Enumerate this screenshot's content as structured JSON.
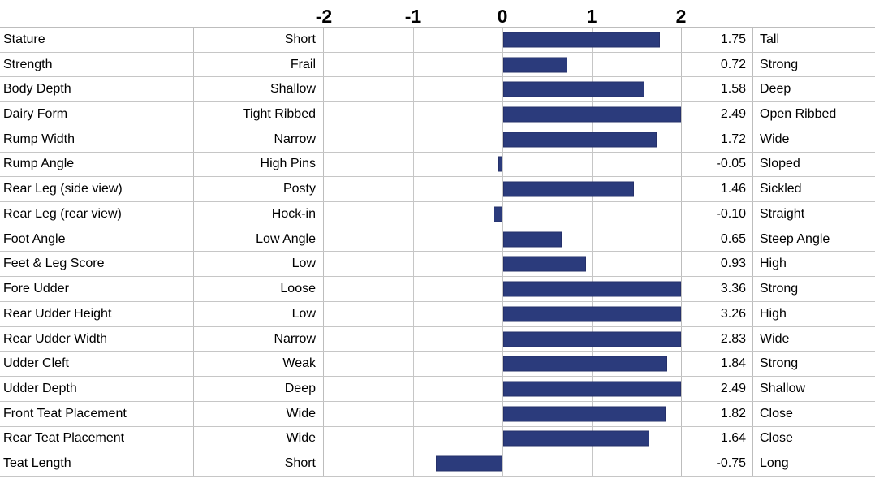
{
  "chart_data": {
    "type": "bar",
    "orientation": "horizontal",
    "title": "",
    "axis_ticks": [
      "-2",
      "-1",
      "0",
      "1",
      "2"
    ],
    "xlim": [
      -2,
      2
    ],
    "bar_color": "#2b3b7c",
    "gridline_color": "#c6c6c6",
    "rows": [
      {
        "trait": "Stature",
        "low": "Short",
        "value": 1.75,
        "high": "Tall"
      },
      {
        "trait": "Strength",
        "low": "Frail",
        "value": 0.72,
        "high": "Strong"
      },
      {
        "trait": "Body Depth",
        "low": "Shallow",
        "value": 1.58,
        "high": "Deep"
      },
      {
        "trait": "Dairy Form",
        "low": "Tight Ribbed",
        "value": 2.49,
        "high": "Open Ribbed"
      },
      {
        "trait": "Rump Width",
        "low": "Narrow",
        "value": 1.72,
        "high": "Wide"
      },
      {
        "trait": "Rump Angle",
        "low": "High Pins",
        "value": -0.05,
        "high": "Sloped"
      },
      {
        "trait": "Rear Leg (side view)",
        "low": "Posty",
        "value": 1.46,
        "high": "Sickled"
      },
      {
        "trait": "Rear Leg (rear view)",
        "low": "Hock-in",
        "value": -0.1,
        "high": "Straight"
      },
      {
        "trait": "Foot Angle",
        "low": "Low Angle",
        "value": 0.65,
        "high": "Steep Angle"
      },
      {
        "trait": "Feet & Leg Score",
        "low": "Low",
        "value": 0.93,
        "high": "High"
      },
      {
        "trait": "Fore Udder",
        "low": "Loose",
        "value": 3.36,
        "high": "Strong"
      },
      {
        "trait": "Rear Udder Height",
        "low": "Low",
        "value": 3.26,
        "high": "High"
      },
      {
        "trait": "Rear Udder Width",
        "low": "Narrow",
        "value": 2.83,
        "high": "Wide"
      },
      {
        "trait": "Udder Cleft",
        "low": "Weak",
        "value": 1.84,
        "high": "Strong"
      },
      {
        "trait": "Udder Depth",
        "low": "Deep",
        "value": 2.49,
        "high": "Shallow"
      },
      {
        "trait": "Front Teat Placement",
        "low": "Wide",
        "value": 1.82,
        "high": "Close"
      },
      {
        "trait": "Rear Teat Placement",
        "low": "Wide",
        "value": 1.64,
        "high": "Close"
      },
      {
        "trait": "Teat Length",
        "low": "Short",
        "value": -0.75,
        "high": "Long"
      }
    ]
  }
}
